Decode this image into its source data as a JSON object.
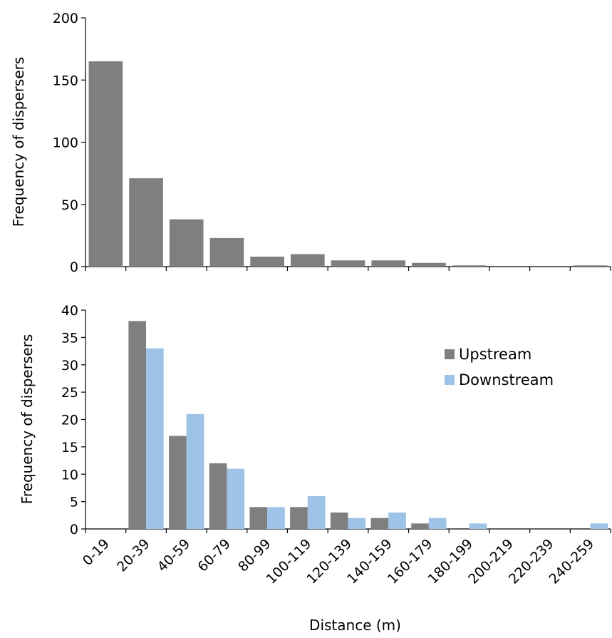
{
  "chart_data": [
    {
      "type": "bar",
      "categories": [
        "0-19",
        "20-39",
        "40-59",
        "60-79",
        "80-99",
        "100-119",
        "120-139",
        "140-159",
        "160-179",
        "180-199",
        "200-219",
        "220-239",
        "240-259"
      ],
      "series": [
        {
          "values": [
            165,
            71,
            38,
            23,
            8,
            10,
            5,
            5,
            3,
            1,
            0,
            0,
            1
          ]
        }
      ],
      "ylabel": "Frequency of dispersers",
      "ylim": [
        0,
        200
      ],
      "yticks": [
        0,
        50,
        100,
        150,
        200
      ],
      "grid": false,
      "colors": [
        "#7f7f7f"
      ]
    },
    {
      "type": "bar",
      "categories": [
        "0-19",
        "20-39",
        "40-59",
        "60-79",
        "80-99",
        "100-119",
        "120-139",
        "140-159",
        "160-179",
        "180-199",
        "200-219",
        "220-239",
        "240-259"
      ],
      "series": [
        {
          "name": "Upstream",
          "values": [
            0,
            38,
            17,
            12,
            4,
            4,
            3,
            2,
            1,
            0,
            0,
            0,
            0
          ]
        },
        {
          "name": "Downstream",
          "values": [
            0,
            33,
            21,
            11,
            4,
            6,
            2,
            3,
            2,
            1,
            0,
            0,
            1
          ]
        }
      ],
      "xlabel": "Distance (m)",
      "ylabel": "Frequency of dispersers",
      "ylim": [
        0,
        40
      ],
      "yticks": [
        0,
        5,
        10,
        15,
        20,
        25,
        30,
        35,
        40
      ],
      "grid": false,
      "legend_position": "right",
      "colors": [
        "#7f7f7f",
        "#9dc3e6"
      ]
    }
  ]
}
